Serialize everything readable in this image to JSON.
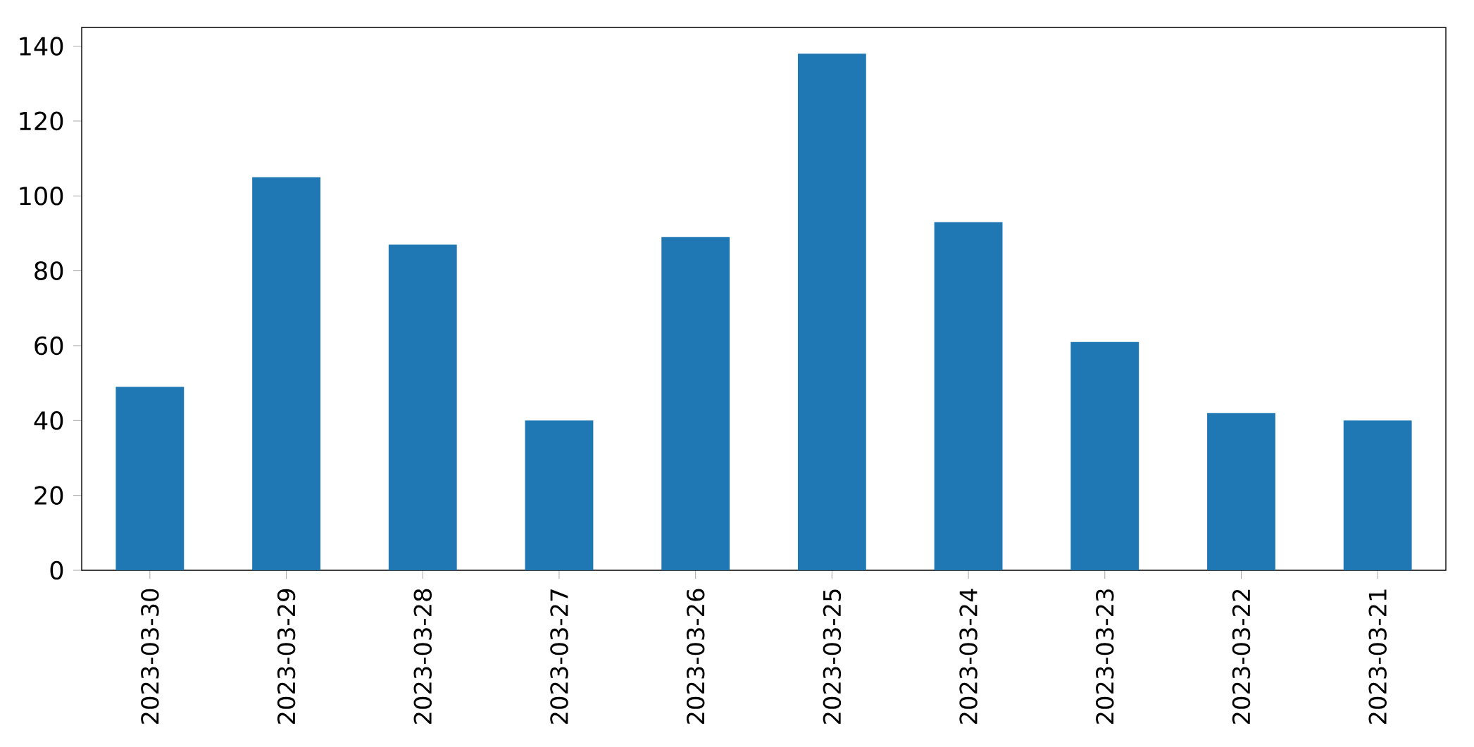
{
  "chart_data": {
    "type": "bar",
    "categories": [
      "2023-03-30",
      "2023-03-29",
      "2023-03-28",
      "2023-03-27",
      "2023-03-26",
      "2023-03-25",
      "2023-03-24",
      "2023-03-23",
      "2023-03-22",
      "2023-03-21"
    ],
    "values": [
      49,
      105,
      87,
      40,
      89,
      138,
      93,
      61,
      42,
      40
    ],
    "color": "#1f77b4",
    "ylim": [
      0,
      145
    ],
    "yticks": [
      0,
      20,
      40,
      60,
      80,
      100,
      120,
      140
    ],
    "grid": false
  }
}
